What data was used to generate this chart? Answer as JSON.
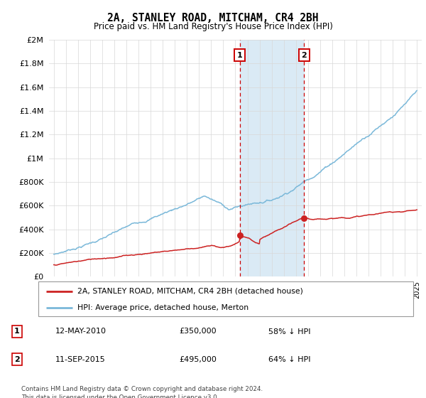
{
  "title": "2A, STANLEY ROAD, MITCHAM, CR4 2BH",
  "subtitle": "Price paid vs. HM Land Registry's House Price Index (HPI)",
  "footer": "Contains HM Land Registry data © Crown copyright and database right 2024.\nThis data is licensed under the Open Government Licence v3.0.",
  "legend_line1": "2A, STANLEY ROAD, MITCHAM, CR4 2BH (detached house)",
  "legend_line2": "HPI: Average price, detached house, Merton",
  "purchase1_date": "12-MAY-2010",
  "purchase1_price": 350000,
  "purchase1_year": 2010.37,
  "purchase1_pct": "58%",
  "purchase2_date": "11-SEP-2015",
  "purchase2_price": 495000,
  "purchase2_year": 2015.69,
  "purchase2_pct": "64%",
  "hpi_color": "#7ab8d9",
  "price_color": "#cc2222",
  "marker_box_color": "#cc0000",
  "shade_color": "#daeaf5",
  "ylim": [
    0,
    2000000
  ],
  "xlim_start": 1994.6,
  "xlim_end": 2025.4
}
